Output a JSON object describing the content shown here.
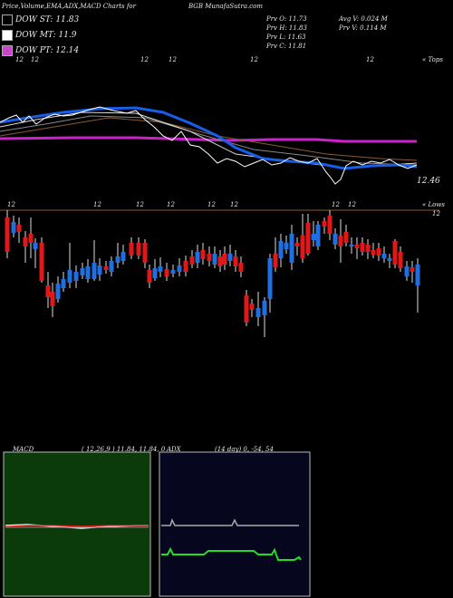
{
  "header": {
    "left_title": "Price,Volume,EMA,ADX,MACD Charts for",
    "symbol": "BGB",
    "site": "MunafaSutra.com",
    "prev_open": "Prv  O: 11.73",
    "prev_high": "Prv  H: 11.83",
    "prev_low": "Prv  L: 11.63",
    "prev_close": "Prv  C: 11.81",
    "avg_vol": "Avg V: 0.024  M",
    "prev_vol": "Prv  V: 0.114  M"
  },
  "legend": [
    {
      "label": "DOW ST: 11.83",
      "color": "#000000"
    },
    {
      "label": "DOW MT: 11.9",
      "color": "#ffffff"
    },
    {
      "label": "DOW PT: 12.14",
      "color": "#cc44cc"
    }
  ],
  "top_labels": [
    "12",
    "12",
    "12",
    "12",
    "12",
    "12"
  ],
  "top_right_label": "« Tops",
  "lows_labels": [
    "12",
    "12",
    "12",
    "12",
    "12",
    "12",
    "12",
    "12"
  ],
  "lows_right_label": "« Lows",
  "price_label": "12.46",
  "candle_right_label": "12",
  "macd_title": "MACD",
  "macd_params": "( 12,26,9 ) 11.84,  11.84,  0",
  "adx_title": "ADX",
  "adx_params": "(14  day) 0,  -54,  54",
  "colors": {
    "up": "#1f6fe0",
    "down": "#e01818",
    "ema_blue": "#1a5de8",
    "ema_magenta": "#cc22cc",
    "macd_bg": "#0b3a0b",
    "adx_bg": "#06061e"
  },
  "chart_data": [
    {
      "type": "candlestick",
      "title": "Price,Volume,EMA,ADX,MACD Charts for BGB",
      "dow_st": 11.83,
      "dow_mt": 11.9,
      "dow_pt": 12.14,
      "prev": {
        "open": 11.73,
        "high": 11.83,
        "low": 11.63,
        "close": 11.81
      },
      "series": [
        {
          "name": "candles",
          "ohlc": [
            [
              12.15,
              12.4,
              11.8,
              11.9
            ],
            [
              12.1,
              12.25,
              11.8,
              12.0
            ],
            [
              12.0,
              12.1,
              11.85,
              12.05
            ],
            [
              11.95,
              12.05,
              11.75,
              11.8
            ],
            [
              11.85,
              11.95,
              11.65,
              11.7
            ],
            [
              11.7,
              11.75,
              11.5,
              11.55
            ],
            [
              11.6,
              11.7,
              11.48,
              11.62
            ],
            [
              11.65,
              11.72,
              11.55,
              11.7
            ],
            [
              11.72,
              11.88,
              11.65,
              11.82
            ],
            [
              11.8,
              11.9,
              11.7,
              11.85
            ],
            [
              11.85,
              11.92,
              11.72,
              11.78
            ],
            [
              11.78,
              11.82,
              11.68,
              11.72
            ]
          ]
        }
      ]
    },
    {
      "type": "line",
      "title": "MACD",
      "params": [
        12,
        26,
        9
      ],
      "values": [
        11.84,
        11.84,
        0
      ]
    },
    {
      "type": "line",
      "title": "ADX",
      "params": [
        14
      ],
      "values": [
        0,
        -54,
        54
      ]
    }
  ]
}
